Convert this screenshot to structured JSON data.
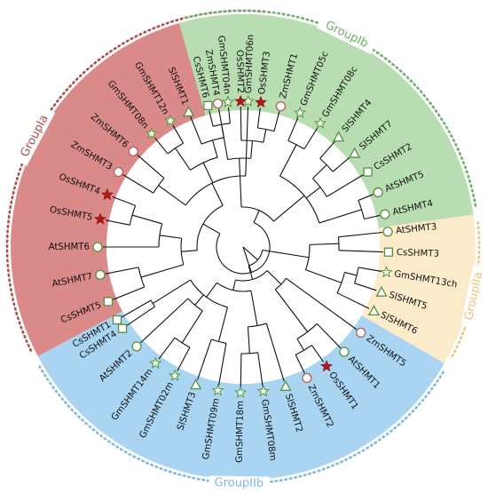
{
  "colors": {
    "groupIa": "#b24a49",
    "groupIa_fill": "#d98a89",
    "groupIb": "#6fae6a",
    "groupIb_fill": "#b9ddb2",
    "groupIIa": "#edc27a",
    "groupIIa_fill": "#fbebcb",
    "groupIIb": "#82b7df",
    "groupIIb_fill": "#a9d5f2",
    "marker_stroke": "#5a8f40",
    "star_fill": "#b51818",
    "circle_stroke": "#b25d5d",
    "hollow_star_stroke": "#5a9e3f"
  },
  "groups": [
    {
      "key": "groupIa",
      "label": "GroupIa"
    },
    {
      "key": "groupIb",
      "label": "GroupIb"
    },
    {
      "key": "groupIIa",
      "label": "GroupIIa"
    },
    {
      "key": "groupIIb",
      "label": "GroupIIb"
    }
  ],
  "leaves": [
    {
      "label": "AtSHMT3",
      "marker": "circle-green-icon"
    },
    {
      "label": "CsSHMT3",
      "marker": "square-icon"
    },
    {
      "label": "GmSHMT13ch",
      "marker": "hollow-star-icon"
    },
    {
      "label": "SlSHMT5",
      "marker": "triangle-icon"
    },
    {
      "label": "SlSHMT6",
      "marker": "triangle-icon"
    },
    {
      "label": "ZmSHMT5",
      "marker": "circle-red-icon"
    },
    {
      "label": "AtSHMT1",
      "marker": "circle-green-icon"
    },
    {
      "label": "OsSHMT1",
      "marker": "filled-star-icon"
    },
    {
      "label": "ZmSHMT2",
      "marker": "circle-red-icon"
    },
    {
      "label": "SlSHMT2",
      "marker": "triangle-icon"
    },
    {
      "label": "GmSHMT08m",
      "marker": "hollow-star-icon"
    },
    {
      "label": "GmSHMT18m",
      "marker": "hollow-star-icon"
    },
    {
      "label": "GmSHMT09m",
      "marker": "hollow-star-icon"
    },
    {
      "label": "SlSHMT3",
      "marker": "triangle-icon"
    },
    {
      "label": "GmSHMT02m",
      "marker": "hollow-star-icon"
    },
    {
      "label": "GmSHMT14m",
      "marker": "hollow-star-icon"
    },
    {
      "label": "AtSHMT2",
      "marker": "circle-green-icon"
    },
    {
      "label": "CsSHMT4",
      "marker": "square-icon"
    },
    {
      "label": "CsSHMT1",
      "marker": "square-icon"
    },
    {
      "label": "CsSHMT5",
      "marker": "square-icon"
    },
    {
      "label": "AtSHMT7",
      "marker": "circle-green-icon"
    },
    {
      "label": "AtSHMT6",
      "marker": "circle-green-icon"
    },
    {
      "label": "OsSHMT5",
      "marker": "filled-star-icon"
    },
    {
      "label": "OsSHMT4",
      "marker": "filled-star-icon"
    },
    {
      "label": "ZmSHMT3",
      "marker": "circle-red-icon"
    },
    {
      "label": "ZmSHMT6",
      "marker": "circle-red-icon"
    },
    {
      "label": "GmSHMT08n",
      "marker": "hollow-star-icon"
    },
    {
      "label": "GmSHMT12n",
      "marker": "hollow-star-icon"
    },
    {
      "label": "SlSHMT1",
      "marker": "triangle-icon"
    },
    {
      "label": "CsSHMT6",
      "marker": "square-icon"
    },
    {
      "label": "GmSHMT04n",
      "marker": "hollow-star-icon"
    },
    {
      "label": "GmSHMT06n",
      "marker": "hollow-star-icon"
    },
    {
      "label": "ZmSHMT4",
      "marker": "circle-red-icon"
    },
    {
      "label": "OsSHMT2",
      "marker": "filled-star-icon"
    },
    {
      "label": "OsSHMT3",
      "marker": "filled-star-icon"
    },
    {
      "label": "ZmSHMT1",
      "marker": "circle-red-icon"
    },
    {
      "label": "GmSHMT05c",
      "marker": "hollow-star-icon"
    },
    {
      "label": "GmSHMT08c",
      "marker": "hollow-star-icon"
    },
    {
      "label": "SlSHMT4",
      "marker": "triangle-icon"
    },
    {
      "label": "SlSHMT7",
      "marker": "triangle-icon"
    },
    {
      "label": "CsSHMT2",
      "marker": "square-icon"
    },
    {
      "label": "AtSHMT5",
      "marker": "circle-green-icon"
    },
    {
      "label": "AtSHMT4",
      "marker": "circle-green-icon"
    }
  ]
}
